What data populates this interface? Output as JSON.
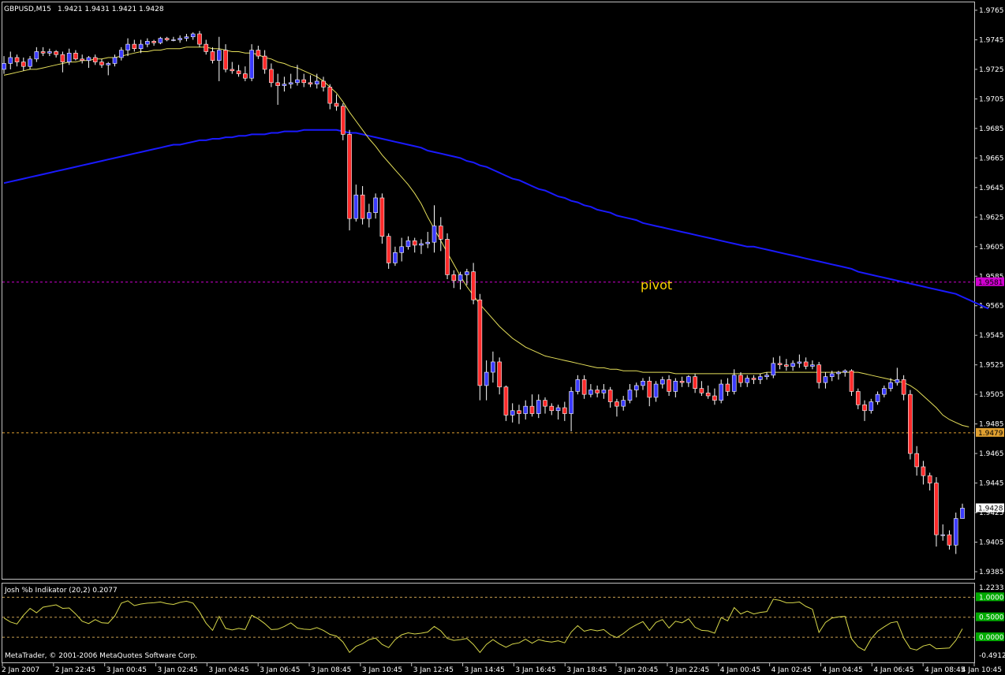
{
  "header": {
    "symbol_timeframe": "GBPUSD,M15",
    "ohlc": "1.9421 1.9431 1.9421 1.9428"
  },
  "indicator": {
    "title": "Josh %b Indikator (20,2) 0.2077",
    "copyright": "MetaTrader, © 2001-2006 MetaQuotes Software Corp.",
    "level_labels": [
      "1.0000",
      "0.5000",
      "0.0000"
    ],
    "top_label": "1.2233",
    "bottom_label": "-0.4912"
  },
  "levels": {
    "pivot_text": "pivot",
    "pivot_value": "1.9581",
    "support_value": "1.9479",
    "current_price": "1.9428"
  },
  "colors": {
    "background": "#000000",
    "bull_candle": "#3b3bff",
    "bear_candle": "#ff2a2a",
    "wick": "#ffffff",
    "ma_fast": "#e6e05a",
    "ma_slow": "#1a1aff",
    "pivot_line": "#d000d0",
    "support_line": "#e0a030",
    "indicator_line": "#d8d84a",
    "level_green": "#00aa00"
  },
  "chart_data": {
    "type": "candlestick",
    "symbol": "GBPUSD",
    "timeframe": "M15",
    "price_axis_ticks": [
      "1.9765",
      "1.9745",
      "1.9725",
      "1.9705",
      "1.9685",
      "1.9665",
      "1.9645",
      "1.9625",
      "1.9605",
      "1.9585",
      "1.9565",
      "1.9545",
      "1.9525",
      "1.9505",
      "1.9485",
      "1.9465",
      "1.9445",
      "1.9425",
      "1.9405",
      "1.9385"
    ],
    "ylim": [
      1.9375,
      1.9775
    ],
    "x_labels": [
      "2 Jan 2007",
      "2 Jan 22:45",
      "3 Jan 00:45",
      "3 Jan 02:45",
      "3 Jan 04:45",
      "3 Jan 06:45",
      "3 Jan 08:45",
      "3 Jan 10:45",
      "3 Jan 12:45",
      "3 Jan 14:45",
      "3 Jan 16:45",
      "3 Jan 18:45",
      "3 Jan 20:45",
      "3 Jan 22:45",
      "4 Jan 00:45",
      "4 Jan 02:45",
      "4 Jan 04:45",
      "4 Jan 06:45",
      "4 Jan 08:45",
      "4 Jan 10:45"
    ],
    "candles": [
      [
        1.9725,
        1.9734,
        1.9722,
        1.9729
      ],
      [
        1.9729,
        1.9737,
        1.9725,
        1.9733
      ],
      [
        1.9733,
        1.9735,
        1.9727,
        1.973
      ],
      [
        1.973,
        1.9733,
        1.9724,
        1.9727
      ],
      [
        1.9727,
        1.9734,
        1.9725,
        1.9732
      ],
      [
        1.9732,
        1.974,
        1.973,
        1.9737
      ],
      [
        1.9737,
        1.974,
        1.9734,
        1.9736
      ],
      [
        1.9736,
        1.9739,
        1.9734,
        1.9737
      ],
      [
        1.9737,
        1.9738,
        1.9733,
        1.9735
      ],
      [
        1.9735,
        1.9737,
        1.9723,
        1.973
      ],
      [
        1.973,
        1.9739,
        1.9728,
        1.9736
      ],
      [
        1.9736,
        1.9738,
        1.9731,
        1.9732
      ],
      [
        1.9732,
        1.9735,
        1.9729,
        1.9731
      ],
      [
        1.9731,
        1.9734,
        1.9726,
        1.9733
      ],
      [
        1.9733,
        1.9735,
        1.9728,
        1.973
      ],
      [
        1.973,
        1.9732,
        1.9726,
        1.9728
      ],
      [
        1.9728,
        1.973,
        1.9721,
        1.9729
      ],
      [
        1.9729,
        1.9735,
        1.9727,
        1.9733
      ],
      [
        1.9733,
        1.974,
        1.9731,
        1.9738
      ],
      [
        1.9738,
        1.9746,
        1.9734,
        1.9742
      ],
      [
        1.9742,
        1.9745,
        1.9737,
        1.9739
      ],
      [
        1.9739,
        1.9745,
        1.9736,
        1.9742
      ],
      [
        1.9742,
        1.9746,
        1.974,
        1.9744
      ],
      [
        1.9744,
        1.9745,
        1.9741,
        1.9743
      ],
      [
        1.9743,
        1.9747,
        1.9742,
        1.9746
      ],
      [
        1.9746,
        1.9747,
        1.9744,
        1.9745
      ],
      [
        1.9745,
        1.9747,
        1.9744,
        1.9745
      ],
      [
        1.9745,
        1.9748,
        1.9743,
        1.9746
      ],
      [
        1.9746,
        1.9749,
        1.9744,
        1.9747
      ],
      [
        1.9747,
        1.975,
        1.9745,
        1.9749
      ],
      [
        1.9749,
        1.9751,
        1.974,
        1.9742
      ],
      [
        1.9742,
        1.9745,
        1.9735,
        1.9737
      ],
      [
        1.9737,
        1.974,
        1.9729,
        1.9731
      ],
      [
        1.9731,
        1.9747,
        1.9717,
        1.9738
      ],
      [
        1.9738,
        1.9742,
        1.9723,
        1.9725
      ],
      [
        1.9725,
        1.973,
        1.9722,
        1.9724
      ],
      [
        1.9724,
        1.9728,
        1.972,
        1.9722
      ],
      [
        1.9722,
        1.9727,
        1.9717,
        1.9719
      ],
      [
        1.9719,
        1.9742,
        1.9717,
        1.9738
      ],
      [
        1.9738,
        1.9741,
        1.9732,
        1.9734
      ],
      [
        1.9734,
        1.9738,
        1.9722,
        1.9725
      ],
      [
        1.9725,
        1.9729,
        1.9713,
        1.9716
      ],
      [
        1.9716,
        1.9722,
        1.9701,
        1.9714
      ],
      [
        1.9714,
        1.972,
        1.971,
        1.9715
      ],
      [
        1.9715,
        1.9722,
        1.9712,
        1.9716
      ],
      [
        1.9716,
        1.9728,
        1.9714,
        1.9718
      ],
      [
        1.9718,
        1.9722,
        1.9713,
        1.9716
      ],
      [
        1.9716,
        1.9721,
        1.9713,
        1.9715
      ],
      [
        1.9715,
        1.9722,
        1.9712,
        1.9717
      ],
      [
        1.9717,
        1.972,
        1.971,
        1.9713
      ],
      [
        1.9713,
        1.9715,
        1.9698,
        1.9702
      ],
      [
        1.9702,
        1.9708,
        1.9697,
        1.97
      ],
      [
        1.97,
        1.9702,
        1.9677,
        1.9681
      ],
      [
        1.9681,
        1.9684,
        1.9616,
        1.9624
      ],
      [
        1.9624,
        1.9647,
        1.9622,
        1.964
      ],
      [
        1.964,
        1.9646,
        1.962,
        1.9624
      ],
      [
        1.9624,
        1.9634,
        1.9618,
        1.9628
      ],
      [
        1.9628,
        1.9641,
        1.9624,
        1.9638
      ],
      [
        1.9638,
        1.9641,
        1.9607,
        1.9612
      ],
      [
        1.9612,
        1.9614,
        1.959,
        1.9594
      ],
      [
        1.9594,
        1.9605,
        1.9592,
        1.9601
      ],
      [
        1.9601,
        1.9611,
        1.9595,
        1.9605
      ],
      [
        1.9605,
        1.9612,
        1.9603,
        1.9609
      ],
      [
        1.9609,
        1.9611,
        1.9601,
        1.9606
      ],
      [
        1.9606,
        1.961,
        1.96,
        1.9607
      ],
      [
        1.9607,
        1.9615,
        1.9604,
        1.9608
      ],
      [
        1.9608,
        1.9633,
        1.9601,
        1.9619
      ],
      [
        1.9619,
        1.9625,
        1.9602,
        1.961
      ],
      [
        1.961,
        1.9614,
        1.9583,
        1.9586
      ],
      [
        1.9586,
        1.9589,
        1.9577,
        1.9582
      ],
      [
        1.9582,
        1.9588,
        1.9576,
        1.9586
      ],
      [
        1.9586,
        1.959,
        1.9579,
        1.9588
      ],
      [
        1.9588,
        1.9594,
        1.9566,
        1.9569
      ],
      [
        1.9569,
        1.9573,
        1.9501,
        1.9511
      ],
      [
        1.9511,
        1.9528,
        1.9501,
        1.952
      ],
      [
        1.952,
        1.9534,
        1.9513,
        1.9527
      ],
      [
        1.9527,
        1.953,
        1.9505,
        1.951
      ],
      [
        1.951,
        1.9511,
        1.9487,
        1.9491
      ],
      [
        1.9491,
        1.9499,
        1.9486,
        1.9494
      ],
      [
        1.9494,
        1.9498,
        1.9485,
        1.9492
      ],
      [
        1.9492,
        1.9501,
        1.9488,
        1.9497
      ],
      [
        1.9497,
        1.9505,
        1.949,
        1.9492
      ],
      [
        1.9492,
        1.9505,
        1.9489,
        1.9501
      ],
      [
        1.9501,
        1.9503,
        1.9492,
        1.9497
      ],
      [
        1.9497,
        1.9499,
        1.9491,
        1.9494
      ],
      [
        1.9494,
        1.9498,
        1.9488,
        1.9496
      ],
      [
        1.9496,
        1.95,
        1.9487,
        1.9492
      ],
      [
        1.9492,
        1.951,
        1.948,
        1.9507
      ],
      [
        1.9507,
        1.9518,
        1.9505,
        1.9515
      ],
      [
        1.9515,
        1.9518,
        1.9502,
        1.9505
      ],
      [
        1.9505,
        1.9512,
        1.9503,
        1.9508
      ],
      [
        1.9508,
        1.9511,
        1.9503,
        1.9506
      ],
      [
        1.9506,
        1.9512,
        1.9502,
        1.9508
      ],
      [
        1.9508,
        1.951,
        1.9496,
        1.95
      ],
      [
        1.95,
        1.9502,
        1.949,
        1.9497
      ],
      [
        1.9497,
        1.9504,
        1.9494,
        1.9501
      ],
      [
        1.9501,
        1.9512,
        1.9499,
        1.9508
      ],
      [
        1.9508,
        1.9513,
        1.9503,
        1.9511
      ],
      [
        1.9511,
        1.9516,
        1.9508,
        1.9514
      ],
      [
        1.9514,
        1.9517,
        1.9497,
        1.9503
      ],
      [
        1.9503,
        1.9514,
        1.95,
        1.9512
      ],
      [
        1.9512,
        1.9517,
        1.9509,
        1.9515
      ],
      [
        1.9515,
        1.9518,
        1.9504,
        1.9507
      ],
      [
        1.9507,
        1.9516,
        1.9503,
        1.9514
      ],
      [
        1.9514,
        1.9517,
        1.951,
        1.9513
      ],
      [
        1.9513,
        1.9518,
        1.951,
        1.9517
      ],
      [
        1.9517,
        1.9519,
        1.9506,
        1.9509
      ],
      [
        1.9509,
        1.9514,
        1.9504,
        1.9506
      ],
      [
        1.9506,
        1.9511,
        1.9502,
        1.9504
      ],
      [
        1.9504,
        1.9509,
        1.9498,
        1.9501
      ],
      [
        1.9501,
        1.9515,
        1.9499,
        1.9512
      ],
      [
        1.9512,
        1.9516,
        1.9504,
        1.9507
      ],
      [
        1.9507,
        1.9522,
        1.9505,
        1.9518
      ],
      [
        1.9518,
        1.952,
        1.951,
        1.9513
      ],
      [
        1.9513,
        1.9518,
        1.951,
        1.9516
      ],
      [
        1.9516,
        1.9518,
        1.9512,
        1.9515
      ],
      [
        1.9515,
        1.9519,
        1.9512,
        1.9517
      ],
      [
        1.9517,
        1.952,
        1.9515,
        1.9518
      ],
      [
        1.9518,
        1.953,
        1.9516,
        1.9526
      ],
      [
        1.9526,
        1.9531,
        1.9522,
        1.9525
      ],
      [
        1.9525,
        1.9529,
        1.9521,
        1.9524
      ],
      [
        1.9524,
        1.9528,
        1.9521,
        1.9526
      ],
      [
        1.9526,
        1.9532,
        1.9523,
        1.9527
      ],
      [
        1.9527,
        1.953,
        1.9522,
        1.9524
      ],
      [
        1.9524,
        1.9528,
        1.9522,
        1.9525
      ],
      [
        1.9525,
        1.9527,
        1.9509,
        1.9513
      ],
      [
        1.9513,
        1.952,
        1.9509,
        1.9517
      ],
      [
        1.9517,
        1.9521,
        1.9514,
        1.9519
      ],
      [
        1.9519,
        1.9521,
        1.9515,
        1.952
      ],
      [
        1.952,
        1.9522,
        1.9517,
        1.9521
      ],
      [
        1.9521,
        1.9522,
        1.9504,
        1.9507
      ],
      [
        1.9507,
        1.9509,
        1.9495,
        1.9498
      ],
      [
        1.9498,
        1.9501,
        1.9487,
        1.9494
      ],
      [
        1.9494,
        1.9502,
        1.9492,
        1.95
      ],
      [
        1.95,
        1.9507,
        1.9498,
        1.9505
      ],
      [
        1.9505,
        1.9511,
        1.9503,
        1.9509
      ],
      [
        1.9509,
        1.9516,
        1.9507,
        1.9513
      ],
      [
        1.9513,
        1.9523,
        1.9511,
        1.9515
      ],
      [
        1.9515,
        1.9518,
        1.9501,
        1.9505
      ],
      [
        1.9505,
        1.9508,
        1.9461,
        1.9465
      ],
      [
        1.9465,
        1.947,
        1.945,
        1.9456
      ],
      [
        1.9456,
        1.946,
        1.9444,
        1.945
      ],
      [
        1.945,
        1.9452,
        1.944,
        1.9445
      ],
      [
        1.9445,
        1.9449,
        1.9402,
        1.941
      ],
      [
        1.941,
        1.9417,
        1.9406,
        1.941
      ],
      [
        1.941,
        1.9413,
        1.94,
        1.9403
      ],
      [
        1.9403,
        1.9425,
        1.9397,
        1.9421
      ],
      [
        1.9421,
        1.9431,
        1.9421,
        1.9428
      ]
    ],
    "ma_fast": [
      1.9721,
      1.9722,
      1.9723,
      1.9724,
      1.9725,
      1.9725,
      1.9726,
      1.9727,
      1.9728,
      1.9729,
      1.973,
      1.973,
      1.9731,
      1.9731,
      1.9732,
      1.9732,
      1.9733,
      1.9733,
      1.9734,
      1.9735,
      1.9736,
      1.9737,
      1.9737,
      1.9738,
      1.9738,
      1.9739,
      1.9739,
      1.9739,
      1.974,
      1.974,
      1.974,
      1.974,
      1.9739,
      1.9739,
      1.9738,
      1.9737,
      1.9737,
      1.9736,
      1.9736,
      1.9735,
      1.9733,
      1.9732,
      1.973,
      1.9729,
      1.9727,
      1.9726,
      1.9724,
      1.9722,
      1.972,
      1.9717,
      1.9713,
      1.9709,
      1.9703,
      1.9696,
      1.969,
      1.9684,
      1.9678,
      1.9673,
      1.9667,
      1.9662,
      1.9657,
      1.9652,
      1.9647,
      1.9641,
      1.9634,
      1.9625,
      1.9617,
      1.9609,
      1.9601,
      1.9593,
      1.9585,
      1.9578,
      1.9572,
      1.9566,
      1.9561,
      1.9556,
      1.9551,
      1.9547,
      1.9543,
      1.954,
      1.9537,
      1.9535,
      1.9533,
      1.9531,
      1.953,
      1.9529,
      1.9528,
      1.9527,
      1.9526,
      1.9525,
      1.9524,
      1.9523,
      1.9523,
      1.9522,
      1.9522,
      1.9521,
      1.9521,
      1.9521,
      1.952,
      1.952,
      1.952,
      1.952,
      1.952,
      1.9519,
      1.9519,
      1.9519,
      1.9519,
      1.9519,
      1.9519,
      1.9519,
      1.9519,
      1.9519,
      1.9519,
      1.9519,
      1.9519,
      1.9519,
      1.9519,
      1.952,
      1.952,
      1.952,
      1.952,
      1.952,
      1.952,
      1.952,
      1.952,
      1.952,
      1.952,
      1.952,
      1.952,
      1.952,
      1.952,
      1.952,
      1.9519,
      1.9518,
      1.9517,
      1.9516,
      1.9515,
      1.9514,
      1.9513,
      1.9511,
      1.9508,
      1.9504,
      1.95,
      1.9496,
      1.9491,
      1.9488,
      1.9486,
      1.9484,
      1.9483
    ],
    "ma_slow": [
      1.9648,
      1.9649,
      1.965,
      1.9651,
      1.9652,
      1.9653,
      1.9654,
      1.9655,
      1.9656,
      1.9657,
      1.9658,
      1.9659,
      1.966,
      1.9661,
      1.9662,
      1.9663,
      1.9664,
      1.9665,
      1.9666,
      1.9667,
      1.9668,
      1.9669,
      1.967,
      1.9671,
      1.9672,
      1.9673,
      1.9674,
      1.9674,
      1.9675,
      1.9676,
      1.9677,
      1.9677,
      1.9678,
      1.9678,
      1.9679,
      1.9679,
      1.968,
      1.968,
      1.9681,
      1.9681,
      1.9681,
      1.9682,
      1.9682,
      1.9683,
      1.9683,
      1.9683,
      1.9684,
      1.9684,
      1.9684,
      1.9684,
      1.9684,
      1.9684,
      1.9683,
      1.9682,
      1.9682,
      1.9681,
      1.968,
      1.9679,
      1.9678,
      1.9677,
      1.9676,
      1.9675,
      1.9674,
      1.9673,
      1.9672,
      1.967,
      1.9669,
      1.9668,
      1.9667,
      1.9666,
      1.9665,
      1.9663,
      1.9662,
      1.966,
      1.9659,
      1.9657,
      1.9655,
      1.9653,
      1.9651,
      1.965,
      1.9648,
      1.9646,
      1.9644,
      1.9643,
      1.9641,
      1.9639,
      1.9638,
      1.9636,
      1.9635,
      1.9633,
      1.9632,
      1.963,
      1.9629,
      1.9628,
      1.9626,
      1.9625,
      1.9624,
      1.9623,
      1.9621,
      1.962,
      1.9619,
      1.9618,
      1.9617,
      1.9616,
      1.9615,
      1.9614,
      1.9613,
      1.9612,
      1.9611,
      1.961,
      1.9609,
      1.9608,
      1.9607,
      1.9606,
      1.9605,
      1.9605,
      1.9604,
      1.9603,
      1.9602,
      1.9601,
      1.96,
      1.9599,
      1.9598,
      1.9597,
      1.9596,
      1.9595,
      1.9594,
      1.9593,
      1.9592,
      1.9591,
      1.959,
      1.9588,
      1.9587,
      1.9586,
      1.9585,
      1.9584,
      1.9583,
      1.9582,
      1.9581,
      1.958,
      1.9579,
      1.9578,
      1.9577,
      1.9576,
      1.9575,
      1.9574,
      1.9573,
      1.9571,
      1.9569,
      1.9567,
      1.9565,
      1.9563
    ],
    "indicator_values": [
      0.48,
      0.38,
      0.33,
      0.55,
      0.72,
      0.61,
      0.75,
      0.78,
      0.81,
      0.72,
      0.73,
      0.58,
      0.4,
      0.34,
      0.44,
      0.36,
      0.35,
      0.53,
      0.85,
      0.91,
      0.79,
      0.83,
      0.85,
      0.86,
      0.88,
      0.84,
      0.82,
      0.87,
      0.9,
      0.85,
      0.63,
      0.35,
      0.17,
      0.52,
      0.22,
      0.18,
      0.22,
      0.19,
      0.55,
      0.46,
      0.34,
      0.19,
      0.2,
      0.27,
      0.36,
      0.23,
      0.2,
      0.19,
      0.24,
      0.17,
      0.07,
      0.03,
      -0.12,
      -0.38,
      -0.23,
      -0.16,
      -0.06,
      -0.02,
      -0.18,
      -0.26,
      -0.06,
      0.06,
      0.11,
      0.08,
      0.1,
      0.13,
      0.27,
      0.16,
      -0.03,
      -0.08,
      -0.06,
      -0.03,
      -0.18,
      -0.38,
      -0.18,
      -0.06,
      -0.17,
      -0.25,
      -0.17,
      -0.14,
      -0.05,
      -0.15,
      -0.06,
      -0.1,
      -0.12,
      -0.09,
      -0.14,
      0.13,
      0.29,
      0.15,
      0.19,
      0.16,
      0.19,
      0.06,
      -0.01,
      0.09,
      0.22,
      0.31,
      0.39,
      0.17,
      0.37,
      0.44,
      0.23,
      0.4,
      0.36,
      0.46,
      0.25,
      0.17,
      0.16,
      0.1,
      0.49,
      0.41,
      0.74,
      0.58,
      0.65,
      0.58,
      0.62,
      0.64,
      0.95,
      0.92,
      0.86,
      0.86,
      0.88,
      0.77,
      0.7,
      0.12,
      0.37,
      0.48,
      0.51,
      0.52,
      -0.04,
      -0.24,
      -0.33,
      -0.04,
      0.15,
      0.26,
      0.36,
      0.39,
      -0.02,
      -0.28,
      -0.32,
      -0.22,
      -0.18,
      -0.29,
      -0.28,
      -0.27,
      -0.08,
      0.21
    ]
  }
}
